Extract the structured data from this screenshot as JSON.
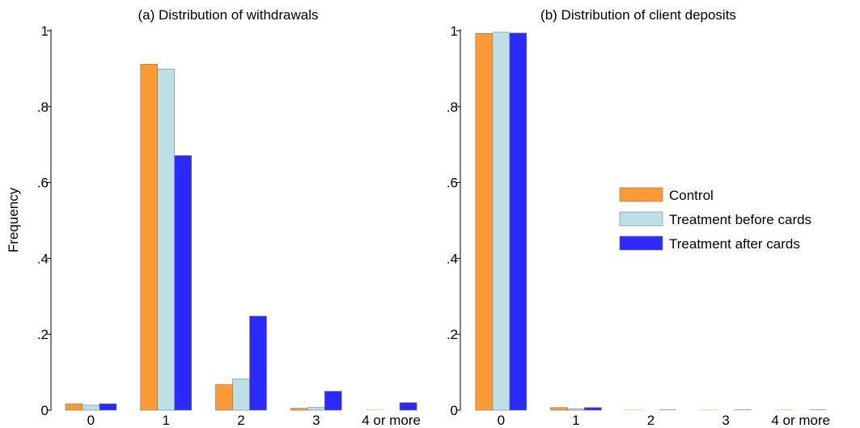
{
  "colors": {
    "Control": "#fb9a35",
    "Treatment before cards": "#bde0e6",
    "Treatment after cards": "#2a2aff",
    "axis": "#000000"
  },
  "chart_data": [
    {
      "type": "bar",
      "title": "(a) Distribution of withdrawals",
      "ylabel": "Frequency",
      "xlabel": "",
      "categories": [
        "0",
        "1",
        "2",
        "3",
        "4 or more"
      ],
      "yticks": [
        "0",
        ".2",
        ".4",
        ".6",
        ".8",
        "1"
      ],
      "ylim": [
        0,
        1
      ],
      "grid": false,
      "series": [
        {
          "name": "Control",
          "values": [
            0.017,
            0.912,
            0.068,
            0.005,
            0.001
          ]
        },
        {
          "name": "Treatment before cards",
          "values": [
            0.013,
            0.899,
            0.082,
            0.007,
            0.0
          ]
        },
        {
          "name": "Treatment after cards",
          "values": [
            0.017,
            0.671,
            0.248,
            0.05,
            0.02
          ]
        }
      ]
    },
    {
      "type": "bar",
      "title": "(b) Distribution of client deposits",
      "ylabel": "",
      "xlabel": "",
      "categories": [
        "0",
        "1",
        "2",
        "3",
        "4 or more"
      ],
      "yticks": [
        "0",
        ".2",
        ".4",
        ".6",
        ".8",
        "1"
      ],
      "ylim": [
        0,
        1
      ],
      "grid": false,
      "legend": "right",
      "series": [
        {
          "name": "Control",
          "values": [
            0.993,
            0.007,
            0.001,
            0.001,
            0.001
          ]
        },
        {
          "name": "Treatment before cards",
          "values": [
            0.996,
            0.004,
            0.0,
            0.0,
            0.0
          ]
        },
        {
          "name": "Treatment after cards",
          "values": [
            0.994,
            0.007,
            0.001,
            0.001,
            0.001
          ]
        }
      ]
    }
  ]
}
